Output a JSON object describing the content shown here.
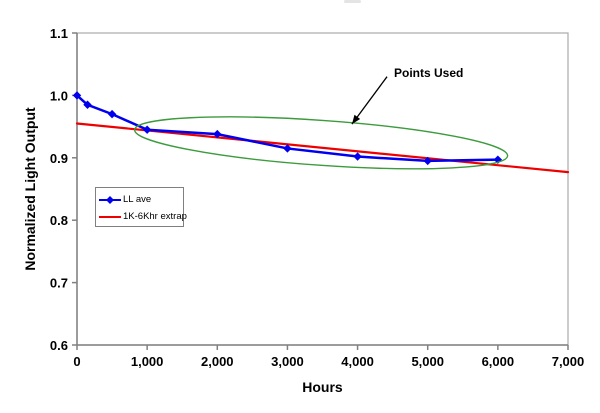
{
  "chart_data": {
    "type": "line",
    "title": "",
    "xlabel": "Hours",
    "ylabel": "Normalized Light Output",
    "xlim": [
      0,
      7000
    ],
    "ylim": [
      0.6,
      1.1
    ],
    "grid": false,
    "x_ticks": [
      0,
      1000,
      2000,
      3000,
      4000,
      5000,
      6000,
      7000
    ],
    "x_tick_labels": [
      "0",
      "1,000",
      "2,000",
      "3,000",
      "4,000",
      "5,000",
      "6,000",
      "7,000"
    ],
    "y_ticks": [
      0.6,
      0.7,
      0.8,
      0.9,
      1.0,
      1.1
    ],
    "y_tick_labels": [
      "0.6",
      "0.7",
      "0.8",
      "0.9",
      "1.0",
      "1.1"
    ],
    "axis_color": "#808080",
    "frame_color": "#ABABAB",
    "legend_position": "inside-left",
    "series": [
      {
        "name": "LL ave",
        "color": "#0000EE",
        "marker": "diamond",
        "x": [
          0,
          150,
          500,
          1000,
          2000,
          3000,
          4000,
          5000,
          6000
        ],
        "y": [
          1.0,
          0.985,
          0.97,
          0.945,
          0.938,
          0.915,
          0.902,
          0.895,
          0.897
        ]
      },
      {
        "name": "1K-6Khr extrap",
        "color": "#EE0000",
        "marker": "none",
        "x": [
          0,
          7000
        ],
        "y": [
          0.955,
          0.877
        ]
      }
    ],
    "annotations": {
      "label": {
        "text": "Points Used",
        "x_hours": 4530,
        "y_value": 1.044
      },
      "arrow": {
        "color": "#000000",
        "from_hours": 4420,
        "from_value": 1.03,
        "to_hours": 3920,
        "to_value": 0.954
      },
      "ellipse": {
        "color": "#3C9B3C",
        "cx_hours": 3480,
        "cy_value": 0.924,
        "rx_hours": 2665,
        "ry_value": 0.036,
        "rotate_deg": 4
      }
    }
  }
}
